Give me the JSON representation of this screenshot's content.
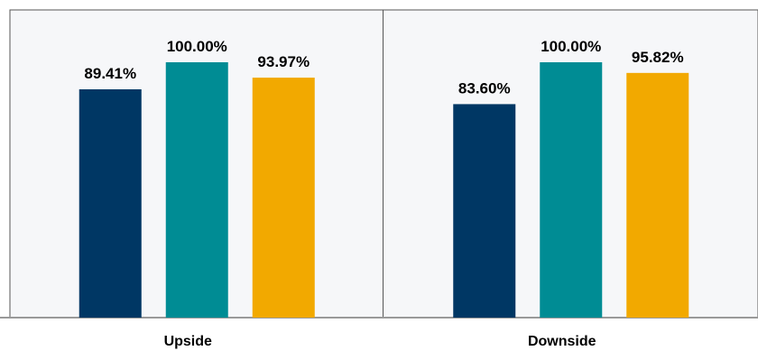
{
  "chart_data": {
    "type": "bar",
    "title": "",
    "xlabel": "",
    "ylabel": "",
    "ylim": [
      0,
      100
    ],
    "grid": false,
    "legend": "none",
    "categories": [
      "Upside",
      "Downside"
    ],
    "series": [
      {
        "values": [
          89.41,
          83.6
        ]
      },
      {
        "values": [
          100.0,
          100.0
        ]
      },
      {
        "values": [
          93.97,
          95.82
        ]
      }
    ],
    "data_labels": [
      [
        "89.41%",
        "100.00%",
        "93.97%"
      ],
      [
        "83.60%",
        "100.00%",
        "95.82%"
      ]
    ]
  },
  "colors": {
    "series": [
      "#003764",
      "#008c94",
      "#f2a900"
    ],
    "panel_background": "#f6f7f9",
    "border": "#555555",
    "baseline": "#999999"
  }
}
